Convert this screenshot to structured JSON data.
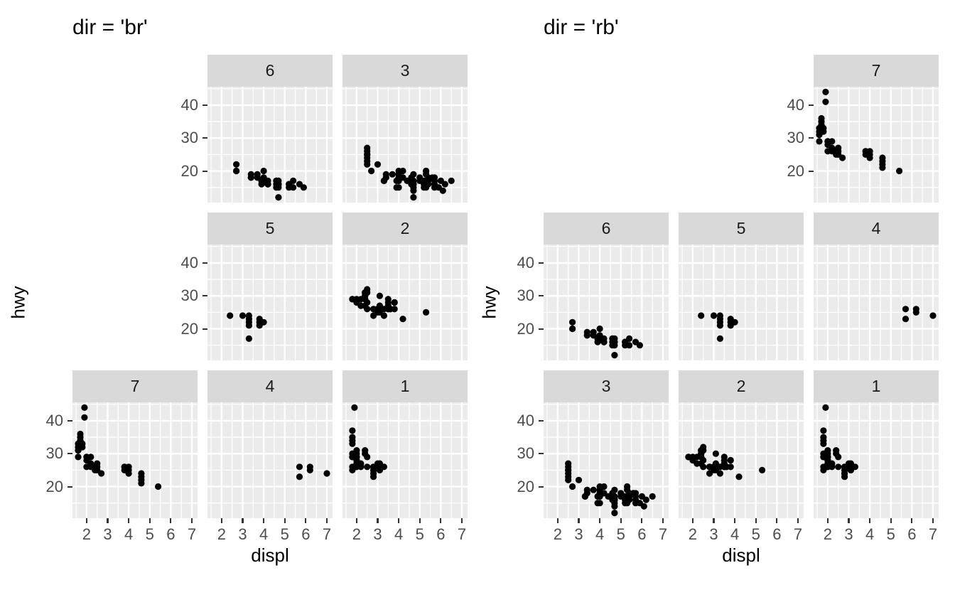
{
  "colors": {
    "panel_bg": "#EBEBEB",
    "strip_bg": "#D9D9D9",
    "grid": "#FFFFFF",
    "point": "#000000",
    "tick_label": "#4D4D4D",
    "tick_mark": "#333333",
    "strip_label": "#1A1A1A",
    "title": "#000000"
  },
  "chart_data": {
    "type": "scatter",
    "xlabel": "displ",
    "ylabel": "hwy",
    "x_ticks": [
      2,
      3,
      4,
      5,
      6,
      7
    ],
    "y_ticks": [
      20,
      30,
      40
    ],
    "x_range": [
      1.33,
      7.27
    ],
    "y_range": [
      10.4,
      45.6
    ],
    "grid": "on",
    "figures": [
      {
        "title": "dir = 'br'",
        "layout": [
          [
            null,
            "6",
            "3"
          ],
          [
            null,
            "5",
            "2"
          ],
          [
            "7",
            "4",
            "1"
          ]
        ]
      },
      {
        "title": "dir = 'rb'",
        "layout": [
          [
            null,
            null,
            "7"
          ],
          [
            "6",
            "5",
            "4"
          ],
          [
            "3",
            "2",
            "1"
          ]
        ]
      }
    ],
    "panels": {
      "1": {
        "label": "1",
        "points": [
          [
            1.8,
            29
          ],
          [
            1.8,
            29
          ],
          [
            2.0,
            31
          ],
          [
            2.0,
            30
          ],
          [
            2.8,
            26
          ],
          [
            2.8,
            26
          ],
          [
            3.1,
            27
          ],
          [
            1.8,
            26
          ],
          [
            1.8,
            25
          ],
          [
            2.0,
            28
          ],
          [
            2.0,
            27
          ],
          [
            2.8,
            25
          ],
          [
            2.8,
            25
          ],
          [
            3.1,
            25
          ],
          [
            3.1,
            25
          ],
          [
            2.2,
            26
          ],
          [
            2.2,
            27
          ],
          [
            2.4,
            30
          ],
          [
            2.4,
            31
          ],
          [
            3.0,
            26
          ],
          [
            3.0,
            27
          ],
          [
            3.3,
            26
          ],
          [
            1.8,
            30
          ],
          [
            1.8,
            33
          ],
          [
            1.8,
            34
          ],
          [
            1.8,
            35
          ],
          [
            1.8,
            37
          ],
          [
            2.0,
            26
          ],
          [
            2.0,
            28
          ],
          [
            2.0,
            29
          ],
          [
            2.0,
            29
          ],
          [
            2.8,
            24
          ],
          [
            1.9,
            44
          ],
          [
            2.0,
            29
          ],
          [
            2.0,
            28
          ],
          [
            2.0,
            26
          ],
          [
            2.0,
            29
          ],
          [
            2.5,
            29
          ],
          [
            2.5,
            26
          ],
          [
            2.8,
            23
          ],
          [
            2.8,
            24
          ]
        ]
      },
      "2": {
        "label": "2",
        "points": [
          [
            1.8,
            29
          ],
          [
            1.8,
            29
          ],
          [
            2.0,
            28
          ],
          [
            2.0,
            29
          ],
          [
            2.8,
            26
          ],
          [
            2.8,
            26
          ],
          [
            3.6,
            26
          ],
          [
            2.8,
            24
          ],
          [
            3.1,
            25
          ],
          [
            4.2,
            23
          ],
          [
            2.4,
            30
          ],
          [
            2.4,
            29
          ],
          [
            3.1,
            27
          ],
          [
            3.5,
            29
          ],
          [
            3.6,
            26
          ],
          [
            2.4,
            29
          ],
          [
            2.4,
            27
          ],
          [
            2.5,
            28
          ],
          [
            2.5,
            26
          ],
          [
            3.3,
            26
          ],
          [
            3.3,
            24
          ],
          [
            2.4,
            29
          ],
          [
            2.4,
            30
          ],
          [
            2.5,
            31
          ],
          [
            2.5,
            32
          ],
          [
            3.5,
            26
          ],
          [
            3.5,
            27
          ],
          [
            3.0,
            26
          ],
          [
            3.0,
            25
          ],
          [
            3.5,
            26
          ],
          [
            3.1,
            30
          ],
          [
            3.8,
            28
          ],
          [
            3.8,
            28
          ],
          [
            3.8,
            26
          ],
          [
            5.3,
            25
          ],
          [
            2.2,
            27
          ],
          [
            2.2,
            29
          ],
          [
            2.4,
            31
          ],
          [
            2.4,
            31
          ],
          [
            3.0,
            26
          ],
          [
            3.0,
            26
          ],
          [
            3.5,
            28
          ]
        ]
      },
      "3": {
        "label": "3",
        "points": [
          [
            2.5,
            27
          ],
          [
            2.5,
            26
          ],
          [
            2.5,
            25
          ],
          [
            2.5,
            25
          ],
          [
            2.5,
            24
          ],
          [
            2.5,
            23
          ],
          [
            2.5,
            22
          ],
          [
            2.7,
            20
          ],
          [
            3.0,
            22
          ],
          [
            3.3,
            17
          ],
          [
            3.3,
            17
          ],
          [
            3.4,
            19
          ],
          [
            3.4,
            18
          ],
          [
            3.7,
            19
          ],
          [
            3.9,
            17
          ],
          [
            3.9,
            15
          ],
          [
            4.0,
            17
          ],
          [
            4.0,
            17
          ],
          [
            4.0,
            18
          ],
          [
            4.0,
            19
          ],
          [
            4.0,
            20
          ],
          [
            4.0,
            15
          ],
          [
            4.2,
            18
          ],
          [
            4.2,
            20
          ],
          [
            4.4,
            17
          ],
          [
            4.6,
            17
          ],
          [
            4.6,
            16
          ],
          [
            4.6,
            18
          ],
          [
            4.6,
            17
          ],
          [
            4.7,
            17
          ],
          [
            4.7,
            16
          ],
          [
            4.7,
            16
          ],
          [
            4.7,
            16
          ],
          [
            4.7,
            19
          ],
          [
            4.7,
            15
          ],
          [
            4.7,
            14
          ],
          [
            4.7,
            12
          ],
          [
            5.0,
            17
          ],
          [
            5.0,
            18
          ],
          [
            5.2,
            16
          ],
          [
            5.2,
            15
          ],
          [
            5.2,
            17
          ],
          [
            5.3,
            20
          ],
          [
            5.3,
            20
          ],
          [
            5.3,
            15
          ],
          [
            5.3,
            17
          ],
          [
            5.3,
            16
          ],
          [
            5.3,
            19
          ],
          [
            5.4,
            17
          ],
          [
            5.4,
            18
          ],
          [
            5.4,
            16
          ],
          [
            5.4,
            17
          ],
          [
            5.6,
            18
          ],
          [
            5.7,
            17
          ],
          [
            5.7,
            18
          ],
          [
            5.7,
            15
          ],
          [
            5.7,
            16
          ],
          [
            5.9,
            15
          ],
          [
            6.0,
            17
          ],
          [
            6.1,
            14
          ],
          [
            6.2,
            16
          ],
          [
            6.5,
            17
          ]
        ]
      },
      "4": {
        "label": "4",
        "points": [
          [
            5.7,
            26
          ],
          [
            5.7,
            23
          ],
          [
            6.2,
            26
          ],
          [
            6.2,
            25
          ],
          [
            7.0,
            24
          ]
        ]
      },
      "5": {
        "label": "5",
        "points": [
          [
            2.4,
            24
          ],
          [
            3.0,
            24
          ],
          [
            3.3,
            24
          ],
          [
            3.3,
            23
          ],
          [
            3.3,
            22
          ],
          [
            3.3,
            21
          ],
          [
            3.3,
            17
          ],
          [
            3.8,
            23
          ],
          [
            3.8,
            22
          ],
          [
            3.8,
            21
          ],
          [
            4.0,
            22
          ]
        ]
      },
      "6": {
        "label": "6",
        "points": [
          [
            2.7,
            22
          ],
          [
            2.7,
            20
          ],
          [
            2.7,
            20
          ],
          [
            3.4,
            19
          ],
          [
            3.4,
            18
          ],
          [
            3.4,
            18
          ],
          [
            3.7,
            19
          ],
          [
            3.7,
            18
          ],
          [
            3.9,
            17
          ],
          [
            3.9,
            17
          ],
          [
            3.9,
            16
          ],
          [
            4.0,
            20
          ],
          [
            4.0,
            18
          ],
          [
            4.0,
            17
          ],
          [
            4.2,
            17
          ],
          [
            4.2,
            16
          ],
          [
            4.2,
            16
          ],
          [
            4.6,
            17
          ],
          [
            4.6,
            16
          ],
          [
            4.6,
            17
          ],
          [
            4.6,
            15
          ],
          [
            4.7,
            16
          ],
          [
            4.7,
            16
          ],
          [
            4.7,
            15
          ],
          [
            4.7,
            17
          ],
          [
            4.7,
            12
          ],
          [
            5.2,
            15
          ],
          [
            5.2,
            16
          ],
          [
            5.2,
            16
          ],
          [
            5.4,
            15
          ],
          [
            5.4,
            17
          ],
          [
            5.7,
            16
          ],
          [
            5.9,
            15
          ]
        ]
      },
      "7": {
        "label": "7",
        "points": [
          [
            1.6,
            33
          ],
          [
            1.6,
            32
          ],
          [
            1.6,
            31
          ],
          [
            1.6,
            29
          ],
          [
            1.7,
            36
          ],
          [
            1.7,
            35
          ],
          [
            1.7,
            34
          ],
          [
            1.8,
            33
          ],
          [
            1.8,
            32
          ],
          [
            1.9,
            44
          ],
          [
            1.9,
            41
          ],
          [
            2.0,
            29
          ],
          [
            2.0,
            29
          ],
          [
            2.0,
            28
          ],
          [
            2.0,
            26
          ],
          [
            2.2,
            29
          ],
          [
            2.2,
            27
          ],
          [
            2.2,
            26
          ],
          [
            2.4,
            26
          ],
          [
            2.4,
            25
          ],
          [
            2.5,
            26
          ],
          [
            2.5,
            27
          ],
          [
            2.5,
            25
          ],
          [
            2.7,
            24
          ],
          [
            3.8,
            26
          ],
          [
            3.8,
            25
          ],
          [
            3.8,
            26
          ],
          [
            4.0,
            26
          ],
          [
            4.0,
            25
          ],
          [
            4.0,
            24
          ],
          [
            4.6,
            24
          ],
          [
            4.6,
            23
          ],
          [
            4.6,
            22
          ],
          [
            4.6,
            21
          ],
          [
            5.4,
            20
          ]
        ]
      }
    }
  }
}
